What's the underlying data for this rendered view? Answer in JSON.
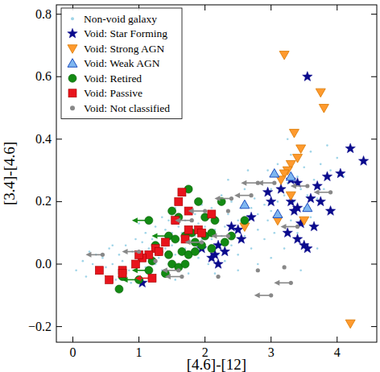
{
  "chart_data": {
    "type": "scatter",
    "x_label": "[4.6]-[12]",
    "y_label": "[3.4]-[4.6]",
    "xlim": [
      -0.25,
      4.6
    ],
    "ylim": [
      -0.25,
      0.83
    ],
    "xticks": [
      0,
      1,
      2,
      3,
      4
    ],
    "yticks": [
      {
        "value": -0.2,
        "label": "−0.2"
      },
      {
        "value": 0.0,
        "label": "0.0"
      },
      0.2,
      0.4,
      0.6,
      0.8
    ],
    "legend": "upper left",
    "series": [
      {
        "name": "Non-void galaxy",
        "color": "#9fd4e8",
        "marker": "pixel",
        "x": [
          0.05,
          0.15,
          0.2,
          0.3,
          0.35,
          0.4,
          0.45,
          0.5,
          0.55,
          0.6,
          0.65,
          0.7,
          0.75,
          0.8,
          0.85,
          0.9,
          0.95,
          0.6,
          0.25,
          0.88,
          1.0,
          1.05,
          1.1,
          1.1,
          1.15,
          1.2,
          1.2,
          1.25,
          1.3,
          1.3,
          1.35,
          1.35,
          1.4,
          1.4,
          1.45,
          1.45,
          1.5,
          1.5,
          1.55,
          1.55,
          1.6,
          1.6,
          1.65,
          1.65,
          1.7,
          1.7,
          1.75,
          1.75,
          1.8,
          1.8,
          1.85,
          1.85,
          1.9,
          1.9,
          1.95,
          1.95,
          1.0,
          1.25,
          1.55,
          1.7,
          2.0,
          2.0,
          2.05,
          2.05,
          2.1,
          2.1,
          2.15,
          2.2,
          2.2,
          2.25,
          2.25,
          2.3,
          2.3,
          2.35,
          2.4,
          2.4,
          2.45,
          2.5,
          2.5,
          2.55,
          2.6,
          2.6,
          2.65,
          2.7,
          2.7,
          2.75,
          2.8,
          2.8,
          2.85,
          2.9,
          2.9,
          2.95,
          2.95,
          2.15,
          2.5,
          2.8,
          2.35,
          2.65,
          3.0,
          3.0,
          3.05,
          3.1,
          3.1,
          3.15,
          3.2,
          3.2,
          3.25,
          3.3,
          3.3,
          3.35,
          3.4,
          3.4,
          3.45,
          3.5,
          3.5,
          3.55,
          3.6,
          3.6,
          3.65,
          3.7,
          3.75,
          3.8,
          3.85,
          3.9,
          4.0,
          4.1,
          3.45,
          3.7,
          3.25,
          3.0
        ],
        "values": [
          -0.02,
          0.01,
          -0.04,
          0.0,
          0.03,
          -0.03,
          0.02,
          -0.01,
          0.05,
          0.0,
          -0.05,
          0.03,
          0.01,
          0.06,
          -0.02,
          0.04,
          0.08,
          0.06,
          0.04,
          -0.06,
          0.02,
          0.07,
          -0.01,
          0.1,
          0.05,
          0.08,
          -0.04,
          0.12,
          0.02,
          0.09,
          0.15,
          -0.02,
          0.05,
          0.11,
          0.0,
          0.14,
          0.06,
          0.1,
          0.03,
          0.18,
          0.08,
          0.12,
          0.0,
          0.1,
          0.05,
          0.14,
          0.07,
          -0.03,
          0.12,
          0.04,
          0.16,
          0.09,
          0.02,
          0.13,
          0.08,
          0.19,
          0.13,
          0.0,
          -0.05,
          0.22,
          0.05,
          0.12,
          0.15,
          0.0,
          0.08,
          0.18,
          0.11,
          0.03,
          0.14,
          0.09,
          0.22,
          0.12,
          0.01,
          0.16,
          0.06,
          0.2,
          0.11,
          0.14,
          0.03,
          0.18,
          0.09,
          0.24,
          0.13,
          0.05,
          0.18,
          0.21,
          0.11,
          0.16,
          0.26,
          0.08,
          0.19,
          0.14,
          0.3,
          -0.03,
          -0.02,
          0.0,
          0.27,
          0.3,
          0.17,
          0.24,
          0.1,
          0.2,
          0.32,
          0.15,
          0.22,
          0.05,
          0.26,
          0.14,
          0.35,
          0.2,
          0.28,
          0.1,
          0.24,
          0.18,
          0.31,
          0.22,
          0.15,
          0.36,
          0.27,
          0.21,
          0.32,
          0.24,
          0.38,
          0.3,
          0.34,
          0.28,
          -0.02,
          0.05,
          0.4,
          0.02
        ]
      },
      {
        "name": "Void: Star Forming",
        "color": "#0a0a8c",
        "marker": "star",
        "x": [
          3.55,
          4.2,
          4.4,
          3.85,
          4.05,
          3.7,
          3.3,
          3.4,
          3.15,
          2.95,
          3.0,
          3.3,
          3.35,
          3.4,
          3.6,
          3.75,
          3.9,
          3.45,
          2.7,
          2.5,
          2.4,
          2.55,
          2.3,
          2.2,
          2.15,
          3.25,
          3.4,
          3.5,
          3.55,
          1.95,
          2.1,
          1.05,
          2.2,
          3.65
        ],
        "values": [
          0.6,
          0.37,
          0.33,
          0.28,
          0.29,
          0.25,
          0.27,
          0.26,
          0.24,
          0.23,
          0.2,
          0.2,
          0.17,
          0.18,
          0.21,
          0.2,
          0.17,
          0.13,
          0.15,
          0.11,
          0.12,
          0.08,
          0.04,
          0.06,
          0.03,
          0.1,
          0.08,
          0.06,
          0.05,
          0.05,
          0.02,
          -0.06,
          0.0,
          0.12
        ]
      },
      {
        "name": "Void: Strong AGN",
        "color": "#ff9a2e",
        "marker": "triangle-down",
        "x": [
          3.2,
          3.75,
          3.8,
          3.35,
          3.45,
          3.4,
          3.3,
          3.25,
          3.2,
          3.15,
          3.3,
          3.1,
          3.5,
          2.6,
          4.2
        ],
        "values": [
          0.67,
          0.55,
          0.5,
          0.42,
          0.37,
          0.34,
          0.32,
          0.3,
          0.29,
          0.27,
          0.22,
          0.14,
          0.14,
          0.12,
          -0.19
        ]
      },
      {
        "name": "Void: Weak AGN",
        "color": "#7eb6f0",
        "marker": "triangle-up",
        "x": [
          3.05,
          3.3,
          2.6,
          3.55,
          3.1
        ],
        "values": [
          0.29,
          0.28,
          0.19,
          0.18,
          0.16
        ]
      },
      {
        "name": "Void: Retired",
        "color": "#138a13",
        "marker": "circle",
        "x": [
          1.15,
          1.75,
          1.9,
          2.25,
          1.5,
          1.6,
          2.0,
          2.15,
          1.45,
          1.55,
          1.7,
          1.8,
          1.85,
          1.95,
          2.0,
          2.1,
          2.3,
          2.4,
          1.3,
          1.45,
          1.65,
          1.75,
          2.1,
          1.2,
          1.5,
          1.6,
          1.0,
          1.15,
          0.75,
          0.7,
          1.4,
          2.6,
          1.25,
          1.7,
          1.85
        ],
        "values": [
          0.14,
          0.24,
          0.2,
          0.2,
          0.17,
          0.15,
          0.15,
          0.14,
          0.09,
          0.08,
          0.09,
          0.1,
          0.07,
          0.06,
          0.09,
          0.1,
          0.07,
          0.09,
          0.04,
          0.03,
          0.04,
          0.03,
          0.05,
          0.01,
          0.0,
          -0.01,
          -0.05,
          -0.02,
          -0.04,
          -0.08,
          -0.03,
          0.14,
          0.06,
          0.0,
          0.04
        ],
        "upper_limits": [
          true,
          false,
          false,
          false,
          false,
          false,
          false,
          false,
          true,
          false,
          false,
          false,
          false,
          false,
          false,
          false,
          false,
          false,
          false,
          false,
          false,
          false,
          false,
          false,
          false,
          false,
          true,
          true,
          false,
          false,
          false,
          false,
          false,
          false,
          false
        ]
      },
      {
        "name": "Void: Passive",
        "color": "#e8141c",
        "marker": "square",
        "x": [
          1.65,
          1.6,
          1.75,
          1.55,
          1.75,
          1.9,
          1.95,
          1.7,
          1.4,
          1.25,
          1.3,
          1.15,
          1.05,
          1.0,
          0.95,
          0.75,
          0.75,
          0.4,
          0.55,
          1.2,
          2.1
        ],
        "values": [
          0.23,
          0.2,
          0.17,
          0.14,
          0.11,
          0.11,
          0.1,
          0.08,
          0.07,
          0.05,
          0.04,
          0.03,
          0.02,
          0.03,
          0.0,
          -0.02,
          -0.03,
          -0.02,
          -0.05,
          -0.045,
          0.16
        ],
        "upper_limits": [
          false,
          false,
          false,
          false,
          false,
          false,
          false,
          false,
          false,
          false,
          false,
          false,
          false,
          false,
          false,
          false,
          false,
          false,
          false,
          true,
          false
        ]
      },
      {
        "name": "Void: Not classified",
        "color": "#888888",
        "marker": "dot",
        "x": [
          2.8,
          3.05,
          2.7,
          3.55,
          3.9,
          2.4,
          2.0,
          1.95,
          2.35,
          1.6,
          3.4,
          1.0,
          0.45,
          2.8,
          3.2,
          2.2,
          3.3,
          3.0,
          1.25,
          1.8,
          2.35,
          1.65
        ],
        "values": [
          0.26,
          0.26,
          0.22,
          0.25,
          0.23,
          0.21,
          0.17,
          0.07,
          0.09,
          -0.02,
          0.12,
          0.04,
          0.03,
          -0.02,
          -0.01,
          -0.04,
          -0.06,
          -0.1,
          0.01,
          0.14,
          0.17,
          -0.04
        ],
        "upper_limits": [
          true,
          true,
          true,
          true,
          true,
          true,
          true,
          true,
          true,
          true,
          true,
          true,
          true,
          false,
          false,
          false,
          true,
          true,
          false,
          true,
          false,
          true
        ]
      }
    ]
  }
}
